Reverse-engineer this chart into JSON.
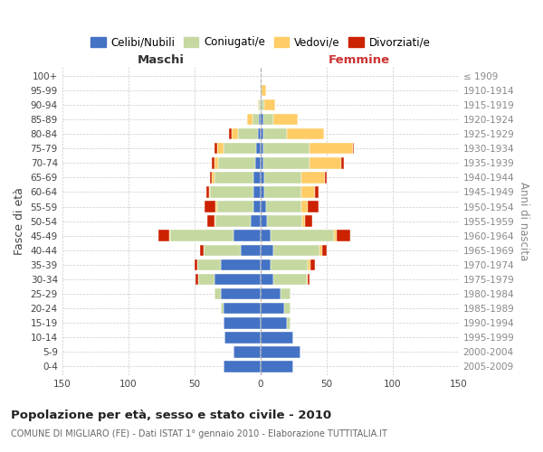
{
  "age_groups": [
    "0-4",
    "5-9",
    "10-14",
    "15-19",
    "20-24",
    "25-29",
    "30-34",
    "35-39",
    "40-44",
    "45-49",
    "50-54",
    "55-59",
    "60-64",
    "65-69",
    "70-74",
    "75-79",
    "80-84",
    "85-89",
    "90-94",
    "95-99",
    "100+"
  ],
  "birth_years": [
    "2005-2009",
    "2000-2004",
    "1995-1999",
    "1990-1994",
    "1985-1989",
    "1980-1984",
    "1975-1979",
    "1970-1974",
    "1965-1969",
    "1960-1964",
    "1955-1959",
    "1950-1954",
    "1945-1949",
    "1940-1944",
    "1935-1939",
    "1930-1934",
    "1925-1929",
    "1920-1924",
    "1915-1919",
    "1910-1914",
    "≤ 1909"
  ],
  "colors": {
    "celibe": "#4472C4",
    "coniugato": "#C5D8A0",
    "vedovo": "#FFCC66",
    "divorziato": "#CC2200"
  },
  "maschi": {
    "celibe": [
      28,
      20,
      27,
      28,
      28,
      30,
      35,
      30,
      15,
      20,
      7,
      5,
      5,
      5,
      4,
      3,
      2,
      1,
      0,
      0,
      0
    ],
    "coniugato": [
      0,
      0,
      0,
      0,
      2,
      5,
      12,
      18,
      28,
      48,
      27,
      28,
      33,
      30,
      28,
      25,
      15,
      5,
      1,
      0,
      0
    ],
    "vedovo": [
      0,
      0,
      0,
      0,
      0,
      0,
      0,
      0,
      0,
      1,
      1,
      1,
      1,
      2,
      3,
      5,
      5,
      4,
      1,
      0,
      0
    ],
    "divorziato": [
      0,
      0,
      0,
      0,
      0,
      0,
      2,
      2,
      3,
      8,
      5,
      8,
      2,
      1,
      2,
      2,
      2,
      0,
      0,
      0,
      0
    ]
  },
  "femmine": {
    "nubile": [
      25,
      30,
      25,
      20,
      18,
      15,
      10,
      8,
      10,
      8,
      5,
      4,
      3,
      3,
      2,
      2,
      2,
      2,
      1,
      1,
      0
    ],
    "coniugata": [
      0,
      0,
      0,
      3,
      5,
      8,
      25,
      28,
      35,
      48,
      27,
      27,
      28,
      28,
      35,
      35,
      18,
      8,
      2,
      0,
      0
    ],
    "vedova": [
      0,
      0,
      0,
      0,
      0,
      0,
      1,
      2,
      2,
      2,
      2,
      5,
      10,
      18,
      24,
      33,
      28,
      18,
      8,
      3,
      0
    ],
    "divorziata": [
      0,
      0,
      0,
      0,
      0,
      0,
      1,
      3,
      3,
      10,
      5,
      8,
      3,
      1,
      2,
      1,
      0,
      0,
      0,
      0,
      0
    ]
  },
  "xlim": 150,
  "title": "Popolazione per età, sesso e stato civile - 2010",
  "subtitle": "COMUNE DI MIGLIARO (FE) - Dati ISTAT 1° gennaio 2010 - Elaborazione TUTTITALIA.IT",
  "ylabel_left": "Fasce di età",
  "ylabel_right": "Anni di nascita",
  "header_left": "Maschi",
  "header_right": "Femmine",
  "legend_labels": [
    "Celibi/Nubili",
    "Coniugati/e",
    "Vedovi/e",
    "Divorziati/e"
  ]
}
